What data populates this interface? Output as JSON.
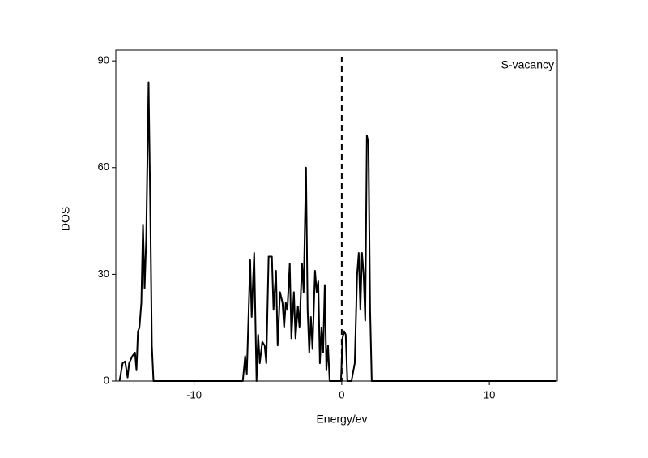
{
  "chart_data": {
    "type": "line",
    "xlabel": "Energy/ev",
    "ylabel": "DOS",
    "x": [
      -15.05,
      -14.84,
      -14.67,
      -14.5,
      -14.4,
      -14.18,
      -14.0,
      -13.9,
      -13.8,
      -13.7,
      -13.57,
      -13.46,
      -13.35,
      -13.24,
      -13.08,
      -12.97,
      -12.86,
      -12.75,
      -6.7,
      -6.54,
      -6.43,
      -6.2,
      -6.1,
      -5.93,
      -5.77,
      -5.66,
      -5.55,
      -5.38,
      -5.22,
      -5.11,
      -4.95,
      -4.73,
      -4.62,
      -4.45,
      -4.34,
      -4.18,
      -4.01,
      -3.9,
      -3.79,
      -3.68,
      -3.52,
      -3.41,
      -3.24,
      -3.13,
      -2.97,
      -2.86,
      -2.69,
      -2.58,
      -2.42,
      -2.31,
      -2.2,
      -2.09,
      -1.98,
      -1.81,
      -1.7,
      -1.59,
      -1.48,
      -1.37,
      -1.26,
      -1.15,
      -1.04,
      -0.93,
      -0.82,
      -0.05,
      0.05,
      0.16,
      0.27,
      0.38,
      0.66,
      0.88,
      1.04,
      1.15,
      1.26,
      1.37,
      1.48,
      1.59,
      1.7,
      1.81,
      1.92,
      2.03,
      14.5
    ],
    "series": [
      {
        "name": "S-vacancy",
        "color": "#000000",
        "values": [
          0,
          5,
          5.5,
          1,
          5,
          7,
          8,
          3,
          14,
          15,
          22,
          44,
          26,
          40,
          84,
          50,
          10,
          0,
          0,
          7,
          2,
          34,
          18,
          36,
          0,
          13,
          5,
          11,
          10,
          5,
          35,
          35,
          20,
          31,
          10,
          25,
          22,
          15,
          22,
          20,
          33,
          12,
          25,
          12,
          21,
          15,
          33,
          25,
          60,
          20,
          8,
          18,
          9,
          31,
          25,
          28,
          5,
          15,
          8,
          27,
          3,
          10,
          0,
          0,
          12,
          14,
          13,
          0,
          0,
          5,
          30,
          36,
          20,
          36,
          30,
          17,
          69,
          67,
          20,
          0,
          0
        ]
      }
    ],
    "xlim": [
      -15.3,
      14.6
    ],
    "ylim": [
      0,
      93
    ],
    "xticks": [
      -10,
      0,
      10
    ],
    "yticks": [
      0,
      30,
      60,
      90
    ],
    "vline": 0
  }
}
